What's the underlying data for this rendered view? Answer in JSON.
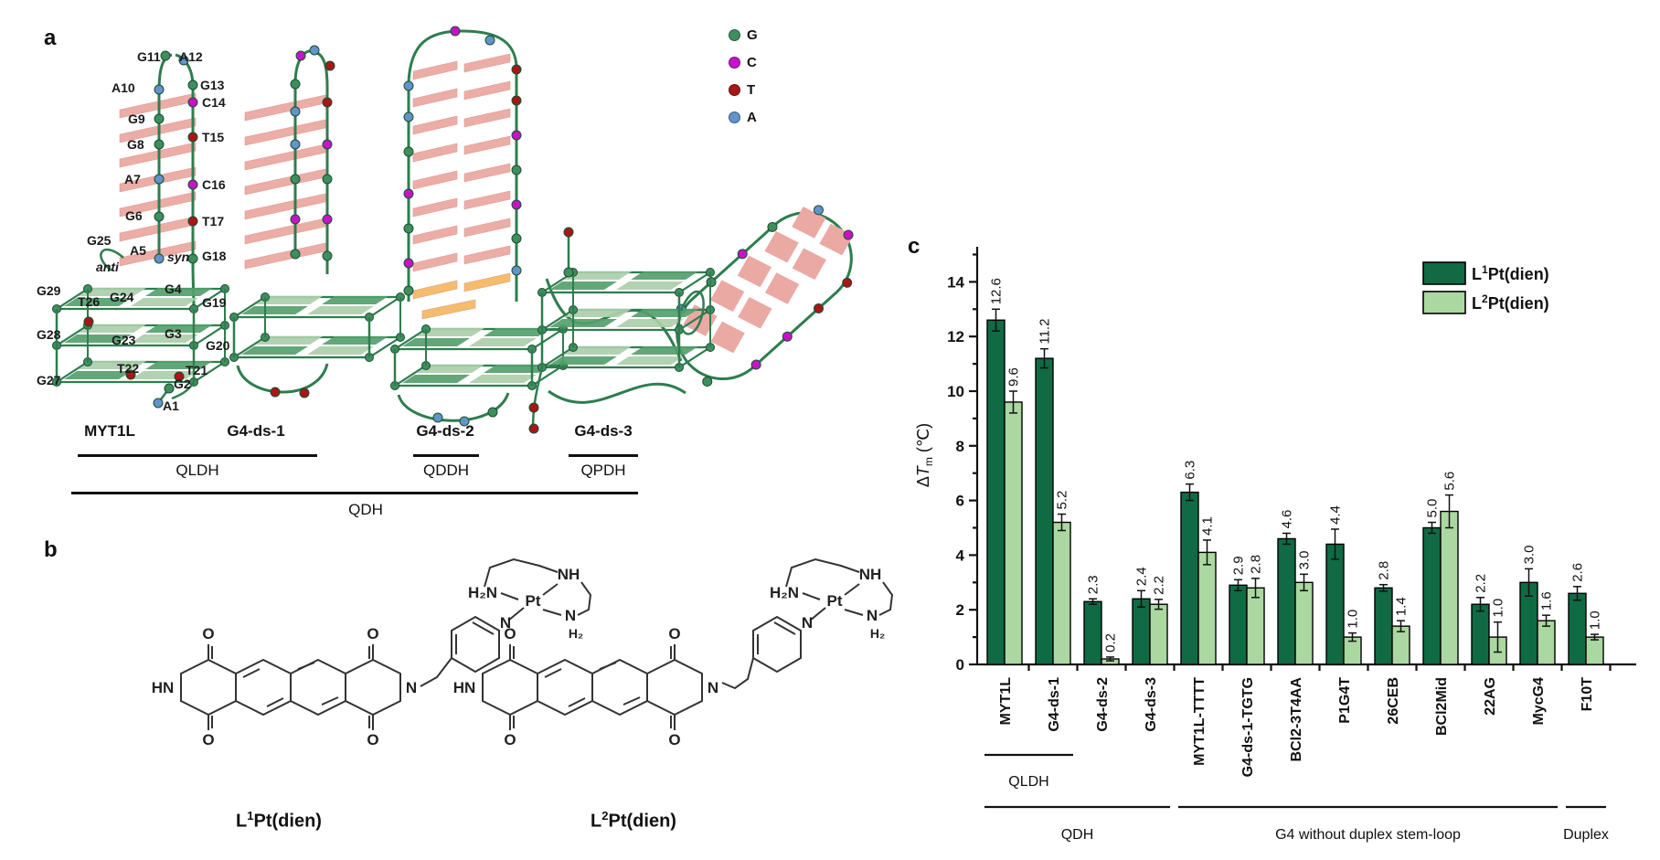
{
  "panel_a": {
    "label": "a",
    "legend": [
      {
        "label": "G",
        "color": "#3f8e5e"
      },
      {
        "label": "C",
        "color": "#c713c7"
      },
      {
        "label": "T",
        "color": "#a81616"
      },
      {
        "label": "A",
        "color": "#6293c9"
      }
    ],
    "base_labels": [
      "G11",
      "A12",
      "A10",
      "G13",
      "C14",
      "G9",
      "G8",
      "T15",
      "A7",
      "C16",
      "G6",
      "T17",
      "G25",
      "A5",
      "syn",
      "anti",
      "G18",
      "G29",
      "T26",
      "G24",
      "G4",
      "G19",
      "G28",
      "G23",
      "G3",
      "G20",
      "T22",
      "T21",
      "G27",
      "G2",
      "A1"
    ],
    "structure_names": [
      "MYT1L",
      "G4-ds-1",
      "G4-ds-2",
      "G4-ds-3"
    ],
    "group_labels": [
      "QLDH",
      "QDDH",
      "QPDH",
      "QDH"
    ]
  },
  "panel_b": {
    "label": "b",
    "molecules": [
      {
        "name_pre": "L",
        "name_sup": "1",
        "name_post": "Pt(dien)",
        "atoms": [
          "O",
          "O",
          "HN",
          "O",
          "O",
          "N",
          "N",
          "H₂N",
          "Pt",
          "NH",
          "N",
          "H₂"
        ]
      },
      {
        "name_pre": "L",
        "name_sup": "2",
        "name_post": "Pt(dien)",
        "atoms": [
          "O",
          "O",
          "HN",
          "O",
          "O",
          "N",
          "N",
          "H₂N",
          "Pt",
          "NH",
          "N",
          "H₂"
        ]
      }
    ]
  },
  "panel_c": {
    "label": "c"
  },
  "chart_data": {
    "type": "bar",
    "title": "",
    "ylabel": {
      "delta": "Δ",
      "symbol": "T",
      "subscript": "m",
      "unit": "(℃)"
    },
    "ylim": [
      0,
      15
    ],
    "yticks": [
      0,
      2,
      4,
      6,
      8,
      10,
      12,
      14
    ],
    "grid": false,
    "legend_position": "top-right",
    "categories": [
      "MYT1L",
      "G4-ds-1",
      "G4-ds-2",
      "G4-ds-3",
      "MYT1L-TTTT",
      "G4-ds-1-TGTG",
      "BCl2-3T4AA",
      "P1G4T",
      "26CEB",
      "BCl2Mid",
      "22AG",
      "MycG4",
      "F10T"
    ],
    "series": [
      {
        "name": {
          "pre": "L",
          "sup": "1",
          "post": "Pt(dien)"
        },
        "color": "#106a44",
        "values": [
          12.6,
          11.2,
          2.3,
          2.4,
          6.3,
          2.9,
          4.6,
          4.4,
          2.8,
          5.0,
          2.2,
          3.0,
          2.6
        ],
        "errors": [
          0.4,
          0.35,
          0.1,
          0.3,
          0.3,
          0.2,
          0.2,
          0.55,
          0.12,
          0.2,
          0.25,
          0.5,
          0.25
        ]
      },
      {
        "name": {
          "pre": "L",
          "sup": "2",
          "post": "Pt(dien)"
        },
        "color": "#aad8a0",
        "values": [
          9.6,
          5.2,
          0.2,
          2.2,
          4.1,
          2.8,
          3.0,
          1.0,
          1.4,
          5.6,
          1.0,
          1.6,
          1.0
        ],
        "errors": [
          0.4,
          0.3,
          0.07,
          0.18,
          0.45,
          0.35,
          0.3,
          0.15,
          0.2,
          0.6,
          0.55,
          0.2,
          0.1
        ]
      }
    ],
    "annotations": [
      {
        "label": "QLDH",
        "from": 0,
        "to": 1,
        "row": 1
      },
      {
        "label": "QDH",
        "from": 0,
        "to": 3,
        "row": 2
      },
      {
        "label": "G4 without duplex stem-loop",
        "from": 4,
        "to": 11,
        "row": 2
      },
      {
        "label": "Duplex",
        "from": 12,
        "to": 12,
        "row": 2
      }
    ]
  }
}
